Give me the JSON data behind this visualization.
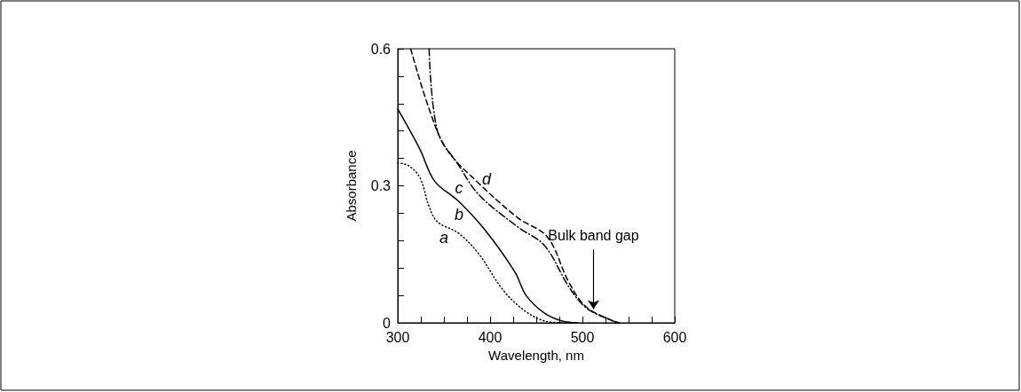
{
  "chart_data": {
    "type": "line",
    "xlabel": "Wavelength, nm",
    "ylabel": "Absorbance",
    "xlim": [
      300,
      600
    ],
    "xticks": [
      300,
      {
        "value": 325,
        "label": null
      },
      {
        "value": 350,
        "label": null
      },
      {
        "value": 375,
        "label": null
      },
      400,
      {
        "value": 425,
        "label": null
      },
      {
        "value": 450,
        "label": null
      },
      {
        "value": 475,
        "label": null
      },
      500,
      {
        "value": 525,
        "label": null
      },
      {
        "value": 550,
        "label": null
      },
      {
        "value": 575,
        "label": null
      },
      600
    ],
    "ylim": [
      0,
      0.6
    ],
    "yticks": [
      0,
      {
        "value": 0.06,
        "label": null
      },
      {
        "value": 0.12,
        "label": null
      },
      {
        "value": 0.18,
        "label": null
      },
      {
        "value": 0.24,
        "label": null
      },
      0.3,
      {
        "value": 0.36,
        "label": null
      },
      {
        "value": 0.42,
        "label": null
      },
      {
        "value": 0.48,
        "label": null
      },
      {
        "value": 0.54,
        "label": null
      },
      0.6
    ],
    "grid": false,
    "marker": "none",
    "series": [
      {
        "name": "a",
        "color": "#000000",
        "line_style": "dotted",
        "x": [
          300,
          311,
          324,
          334,
          343,
          366,
          388,
          414,
          437,
          459,
          480
        ],
        "values": [
          0.35,
          0.345,
          0.318,
          0.254,
          0.221,
          0.196,
          0.15,
          0.072,
          0.027,
          0.004,
          0
        ]
      },
      {
        "name": "b",
        "color": "#000000",
        "line_style": "solid",
        "x": [
          300,
          324,
          340,
          366,
          395,
          427,
          439,
          459,
          478,
          495
        ],
        "values": [
          0.468,
          0.38,
          0.31,
          0.266,
          0.202,
          0.111,
          0.06,
          0.021,
          0.004,
          0
        ]
      },
      {
        "name": "c",
        "color": "#000000",
        "line_style": "dashdot",
        "x": [
          334,
          343,
          366,
          388,
          430,
          459,
          485,
          504,
          533,
          540
        ],
        "values": [
          0.6,
          0.42,
          0.345,
          0.28,
          0.21,
          0.169,
          0.08,
          0.033,
          0.004,
          0
        ]
      },
      {
        "name": "d",
        "color": "#000000",
        "line_style": "dashed",
        "x": [
          314,
          334,
          353,
          388,
          430,
          462,
          485,
          504,
          533,
          540
        ],
        "values": [
          0.6,
          0.468,
          0.38,
          0.305,
          0.23,
          0.188,
          0.09,
          0.035,
          0.004,
          0
        ]
      }
    ],
    "annotations": [
      {
        "text": "Bulk band gap",
        "x": 512,
        "y": 0.03
      }
    ]
  }
}
